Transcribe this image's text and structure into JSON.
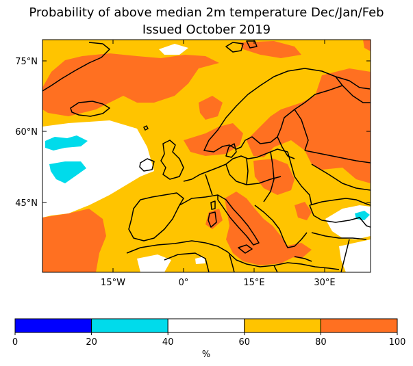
{
  "title_line1": "Probability of above median 2m temperature Dec/Jan/Feb",
  "title_line2": "Issued October 2019",
  "lat_labels": [
    "75°N",
    "60°N",
    "45°N"
  ],
  "lon_labels": [
    "15°W",
    "0°",
    "15°E",
    "30°E"
  ],
  "colorbar": {
    "bins": [
      {
        "from": 0,
        "to": 20,
        "color": "#0000ff"
      },
      {
        "from": 20,
        "to": 40,
        "color": "#00dbeb"
      },
      {
        "from": 40,
        "to": 60,
        "color": "#ffffff"
      },
      {
        "from": 60,
        "to": 80,
        "color": "#ffc400"
      },
      {
        "from": 80,
        "to": 100,
        "color": "#ff7021"
      }
    ],
    "tick_labels": [
      "0",
      "20",
      "40",
      "60",
      "80",
      "100"
    ],
    "unit_label": "%"
  },
  "colors": {
    "above_60": "#ffc400",
    "above_80": "#ff7021",
    "between_20_40": "#00dbeb",
    "between_40_60": "#ffffff",
    "coastline": "#000000"
  }
}
